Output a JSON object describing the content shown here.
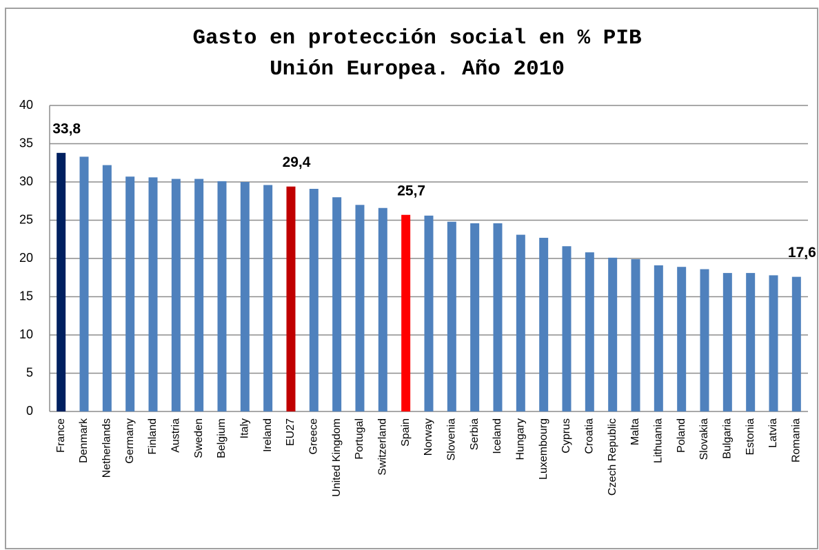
{
  "chart_data": {
    "type": "bar",
    "title": "Gasto en protección social en % PIB",
    "subtitle": "Unión Europea. Año 2010",
    "categories": [
      "France",
      "Denmark",
      "Netherlands",
      "Germany",
      "Finland",
      "Austria",
      "Sweden",
      "Belgium",
      "Italy",
      "Ireland",
      "EU27",
      "Greece",
      "United Kingdom",
      "Portugal",
      "Switzerland",
      "Spain",
      "Norway",
      "Slovenia",
      "Serbia",
      "Iceland",
      "Hungary",
      "Luxembourg",
      "Cyprus",
      "Croatia",
      "Czech Republic",
      "Malta",
      "Lithuania",
      "Poland",
      "Slovakia",
      "Bulgaria",
      "Estonia",
      "Latvia",
      "Romania"
    ],
    "values": [
      33.8,
      33.3,
      32.2,
      30.7,
      30.6,
      30.4,
      30.4,
      30.1,
      30.0,
      29.6,
      29.4,
      29.1,
      28.0,
      27.0,
      26.6,
      25.7,
      25.6,
      24.8,
      24.6,
      24.6,
      23.1,
      22.7,
      21.6,
      20.8,
      20.1,
      19.9,
      19.1,
      18.9,
      18.6,
      18.1,
      18.1,
      17.8,
      17.6
    ],
    "value_labels": [
      "33,8",
      null,
      null,
      null,
      null,
      null,
      null,
      null,
      null,
      null,
      "29,4",
      null,
      null,
      null,
      null,
      "25,7",
      null,
      null,
      null,
      null,
      null,
      null,
      null,
      null,
      null,
      null,
      null,
      null,
      null,
      null,
      null,
      null,
      "17,6"
    ],
    "colors": [
      "#002060",
      "#4f81bd",
      "#4f81bd",
      "#4f81bd",
      "#4f81bd",
      "#4f81bd",
      "#4f81bd",
      "#4f81bd",
      "#4f81bd",
      "#4f81bd",
      "#c00000",
      "#4f81bd",
      "#4f81bd",
      "#4f81bd",
      "#4f81bd",
      "#ff0000",
      "#4f81bd",
      "#4f81bd",
      "#4f81bd",
      "#4f81bd",
      "#4f81bd",
      "#4f81bd",
      "#4f81bd",
      "#4f81bd",
      "#4f81bd",
      "#4f81bd",
      "#4f81bd",
      "#4f81bd",
      "#4f81bd",
      "#4f81bd",
      "#4f81bd",
      "#4f81bd",
      "#4f81bd"
    ],
    "ylim": [
      0,
      40
    ],
    "yticks": [
      0,
      5,
      10,
      15,
      20,
      25,
      30,
      35,
      40
    ],
    "grid": true
  }
}
